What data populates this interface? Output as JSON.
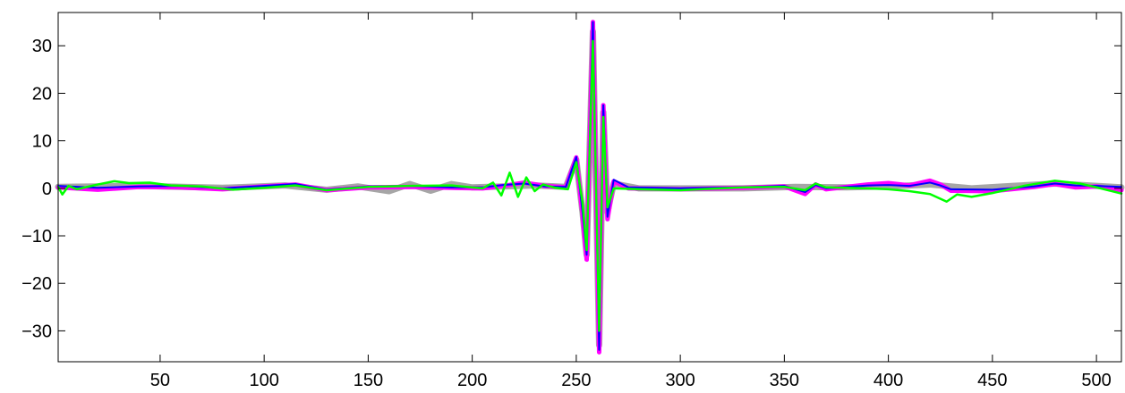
{
  "chart_data": {
    "type": "line",
    "title": "",
    "xlabel": "",
    "ylabel": "",
    "xlim": [
      1,
      512
    ],
    "ylim": [
      -36.5,
      37
    ],
    "xticks": [
      50,
      100,
      150,
      200,
      250,
      300,
      350,
      400,
      450,
      500
    ],
    "yticks": [
      -30,
      -20,
      -10,
      0,
      10,
      20,
      30
    ],
    "grid": false,
    "legend": "none",
    "series": [
      {
        "color": "#a6a6a6",
        "width": 7,
        "points": [
          [
            1,
            0.3
          ],
          [
            40,
            0.5
          ],
          [
            80,
            0.1
          ],
          [
            110,
            0.6
          ],
          [
            130,
            -0.3
          ],
          [
            145,
            0.4
          ],
          [
            160,
            -0.6
          ],
          [
            170,
            0.9
          ],
          [
            180,
            -0.5
          ],
          [
            190,
            0.9
          ],
          [
            200,
            0.2
          ],
          [
            215,
            0.4
          ],
          [
            230,
            0.6
          ],
          [
            245,
            0.3
          ],
          [
            250,
            6
          ],
          [
            253,
            -5
          ],
          [
            255,
            -14
          ],
          [
            258,
            33
          ],
          [
            261,
            -33
          ],
          [
            263,
            16
          ],
          [
            265,
            -5
          ],
          [
            268,
            1
          ],
          [
            280,
            0
          ],
          [
            300,
            0
          ],
          [
            330,
            0
          ],
          [
            355,
            0.3
          ],
          [
            380,
            0.2
          ],
          [
            400,
            0.4
          ],
          [
            420,
            0.8
          ],
          [
            440,
            0
          ],
          [
            460,
            0.5
          ],
          [
            480,
            1
          ],
          [
            500,
            0.5
          ],
          [
            512,
            0.2
          ]
        ]
      },
      {
        "color": "#ff00ff",
        "width": 5,
        "points": [
          [
            1,
            0.2
          ],
          [
            20,
            -0.3
          ],
          [
            40,
            0.3
          ],
          [
            60,
            0.2
          ],
          [
            80,
            -0.2
          ],
          [
            100,
            0.4
          ],
          [
            115,
            0.8
          ],
          [
            130,
            -0.4
          ],
          [
            150,
            0.2
          ],
          [
            170,
            0.3
          ],
          [
            190,
            0.1
          ],
          [
            205,
            0
          ],
          [
            215,
            0.5
          ],
          [
            225,
            1.2
          ],
          [
            235,
            0.5
          ],
          [
            245,
            0.2
          ],
          [
            250,
            6.5
          ],
          [
            253,
            -5.5
          ],
          [
            255,
            -15
          ],
          [
            258,
            35
          ],
          [
            261,
            -34.5
          ],
          [
            263,
            17.5
          ],
          [
            265,
            -6.5
          ],
          [
            268,
            1.5
          ],
          [
            275,
            0
          ],
          [
            300,
            -0.2
          ],
          [
            330,
            0.1
          ],
          [
            350,
            0.4
          ],
          [
            360,
            -1.2
          ],
          [
            365,
            0.8
          ],
          [
            370,
            -0.2
          ],
          [
            390,
            0.8
          ],
          [
            400,
            1.1
          ],
          [
            410,
            0.6
          ],
          [
            420,
            1.6
          ],
          [
            425,
            0.8
          ],
          [
            430,
            -0.5
          ],
          [
            450,
            -0.6
          ],
          [
            470,
            0.3
          ],
          [
            480,
            0.9
          ],
          [
            490,
            0.2
          ],
          [
            500,
            0.4
          ],
          [
            512,
            -0.4
          ]
        ]
      },
      {
        "color": "#0000ff",
        "width": 2,
        "points": [
          [
            1,
            0.5
          ],
          [
            20,
            0.1
          ],
          [
            40,
            0.4
          ],
          [
            60,
            0.5
          ],
          [
            80,
            0
          ],
          [
            100,
            0.5
          ],
          [
            115,
            0.9
          ],
          [
            130,
            -0.3
          ],
          [
            150,
            0.4
          ],
          [
            170,
            0.5
          ],
          [
            190,
            0.2
          ],
          [
            205,
            0.2
          ],
          [
            215,
            0.7
          ],
          [
            225,
            1
          ],
          [
            235,
            0.4
          ],
          [
            245,
            0.3
          ],
          [
            250,
            6.6
          ],
          [
            253,
            -5
          ],
          [
            255,
            -14
          ],
          [
            258,
            35
          ],
          [
            261,
            -34
          ],
          [
            263,
            17.5
          ],
          [
            265,
            -6
          ],
          [
            268,
            1.8
          ],
          [
            275,
            0.2
          ],
          [
            300,
            0
          ],
          [
            330,
            0.2
          ],
          [
            350,
            0.5
          ],
          [
            360,
            -0.8
          ],
          [
            365,
            0.7
          ],
          [
            370,
            0
          ],
          [
            390,
            0.6
          ],
          [
            400,
            0.7
          ],
          [
            410,
            0.5
          ],
          [
            420,
            1.2
          ],
          [
            425,
            0.6
          ],
          [
            430,
            -0.2
          ],
          [
            450,
            -0.3
          ],
          [
            470,
            0.4
          ],
          [
            480,
            1
          ],
          [
            490,
            0.6
          ],
          [
            500,
            0.5
          ],
          [
            512,
            0.3
          ]
        ]
      },
      {
        "color": "#00ff00",
        "width": 2.5,
        "points": [
          [
            1,
            0.3
          ],
          [
            3,
            -1.3
          ],
          [
            6,
            0.5
          ],
          [
            10,
            -0.2
          ],
          [
            20,
            0.8
          ],
          [
            28,
            1.5
          ],
          [
            35,
            1.1
          ],
          [
            45,
            1.2
          ],
          [
            55,
            0.6
          ],
          [
            70,
            0.4
          ],
          [
            85,
            -0.3
          ],
          [
            100,
            0.1
          ],
          [
            115,
            0.6
          ],
          [
            130,
            -0.4
          ],
          [
            150,
            0.3
          ],
          [
            170,
            0.5
          ],
          [
            190,
            0.6
          ],
          [
            205,
            0
          ],
          [
            210,
            1.2
          ],
          [
            214,
            -1.5
          ],
          [
            218,
            3.3
          ],
          [
            222,
            -1.8
          ],
          [
            226,
            2.3
          ],
          [
            230,
            -0.6
          ],
          [
            234,
            0.8
          ],
          [
            240,
            0.1
          ],
          [
            246,
            -0.2
          ],
          [
            250,
            5.5
          ],
          [
            253,
            -3
          ],
          [
            255,
            -13
          ],
          [
            258,
            31
          ],
          [
            261,
            -30
          ],
          [
            263,
            15
          ],
          [
            265,
            -4
          ],
          [
            268,
            0
          ],
          [
            280,
            -0.2
          ],
          [
            300,
            -0.4
          ],
          [
            330,
            0.2
          ],
          [
            350,
            0.3
          ],
          [
            360,
            -0.4
          ],
          [
            365,
            1
          ],
          [
            370,
            0.2
          ],
          [
            390,
            0
          ],
          [
            400,
            -0.2
          ],
          [
            410,
            -0.6
          ],
          [
            420,
            -1.2
          ],
          [
            428,
            -2.8
          ],
          [
            433,
            -1.3
          ],
          [
            440,
            -1.8
          ],
          [
            450,
            -1
          ],
          [
            465,
            0.5
          ],
          [
            480,
            1.6
          ],
          [
            492,
            1
          ],
          [
            500,
            0.2
          ],
          [
            512,
            -1.1
          ]
        ]
      }
    ]
  }
}
